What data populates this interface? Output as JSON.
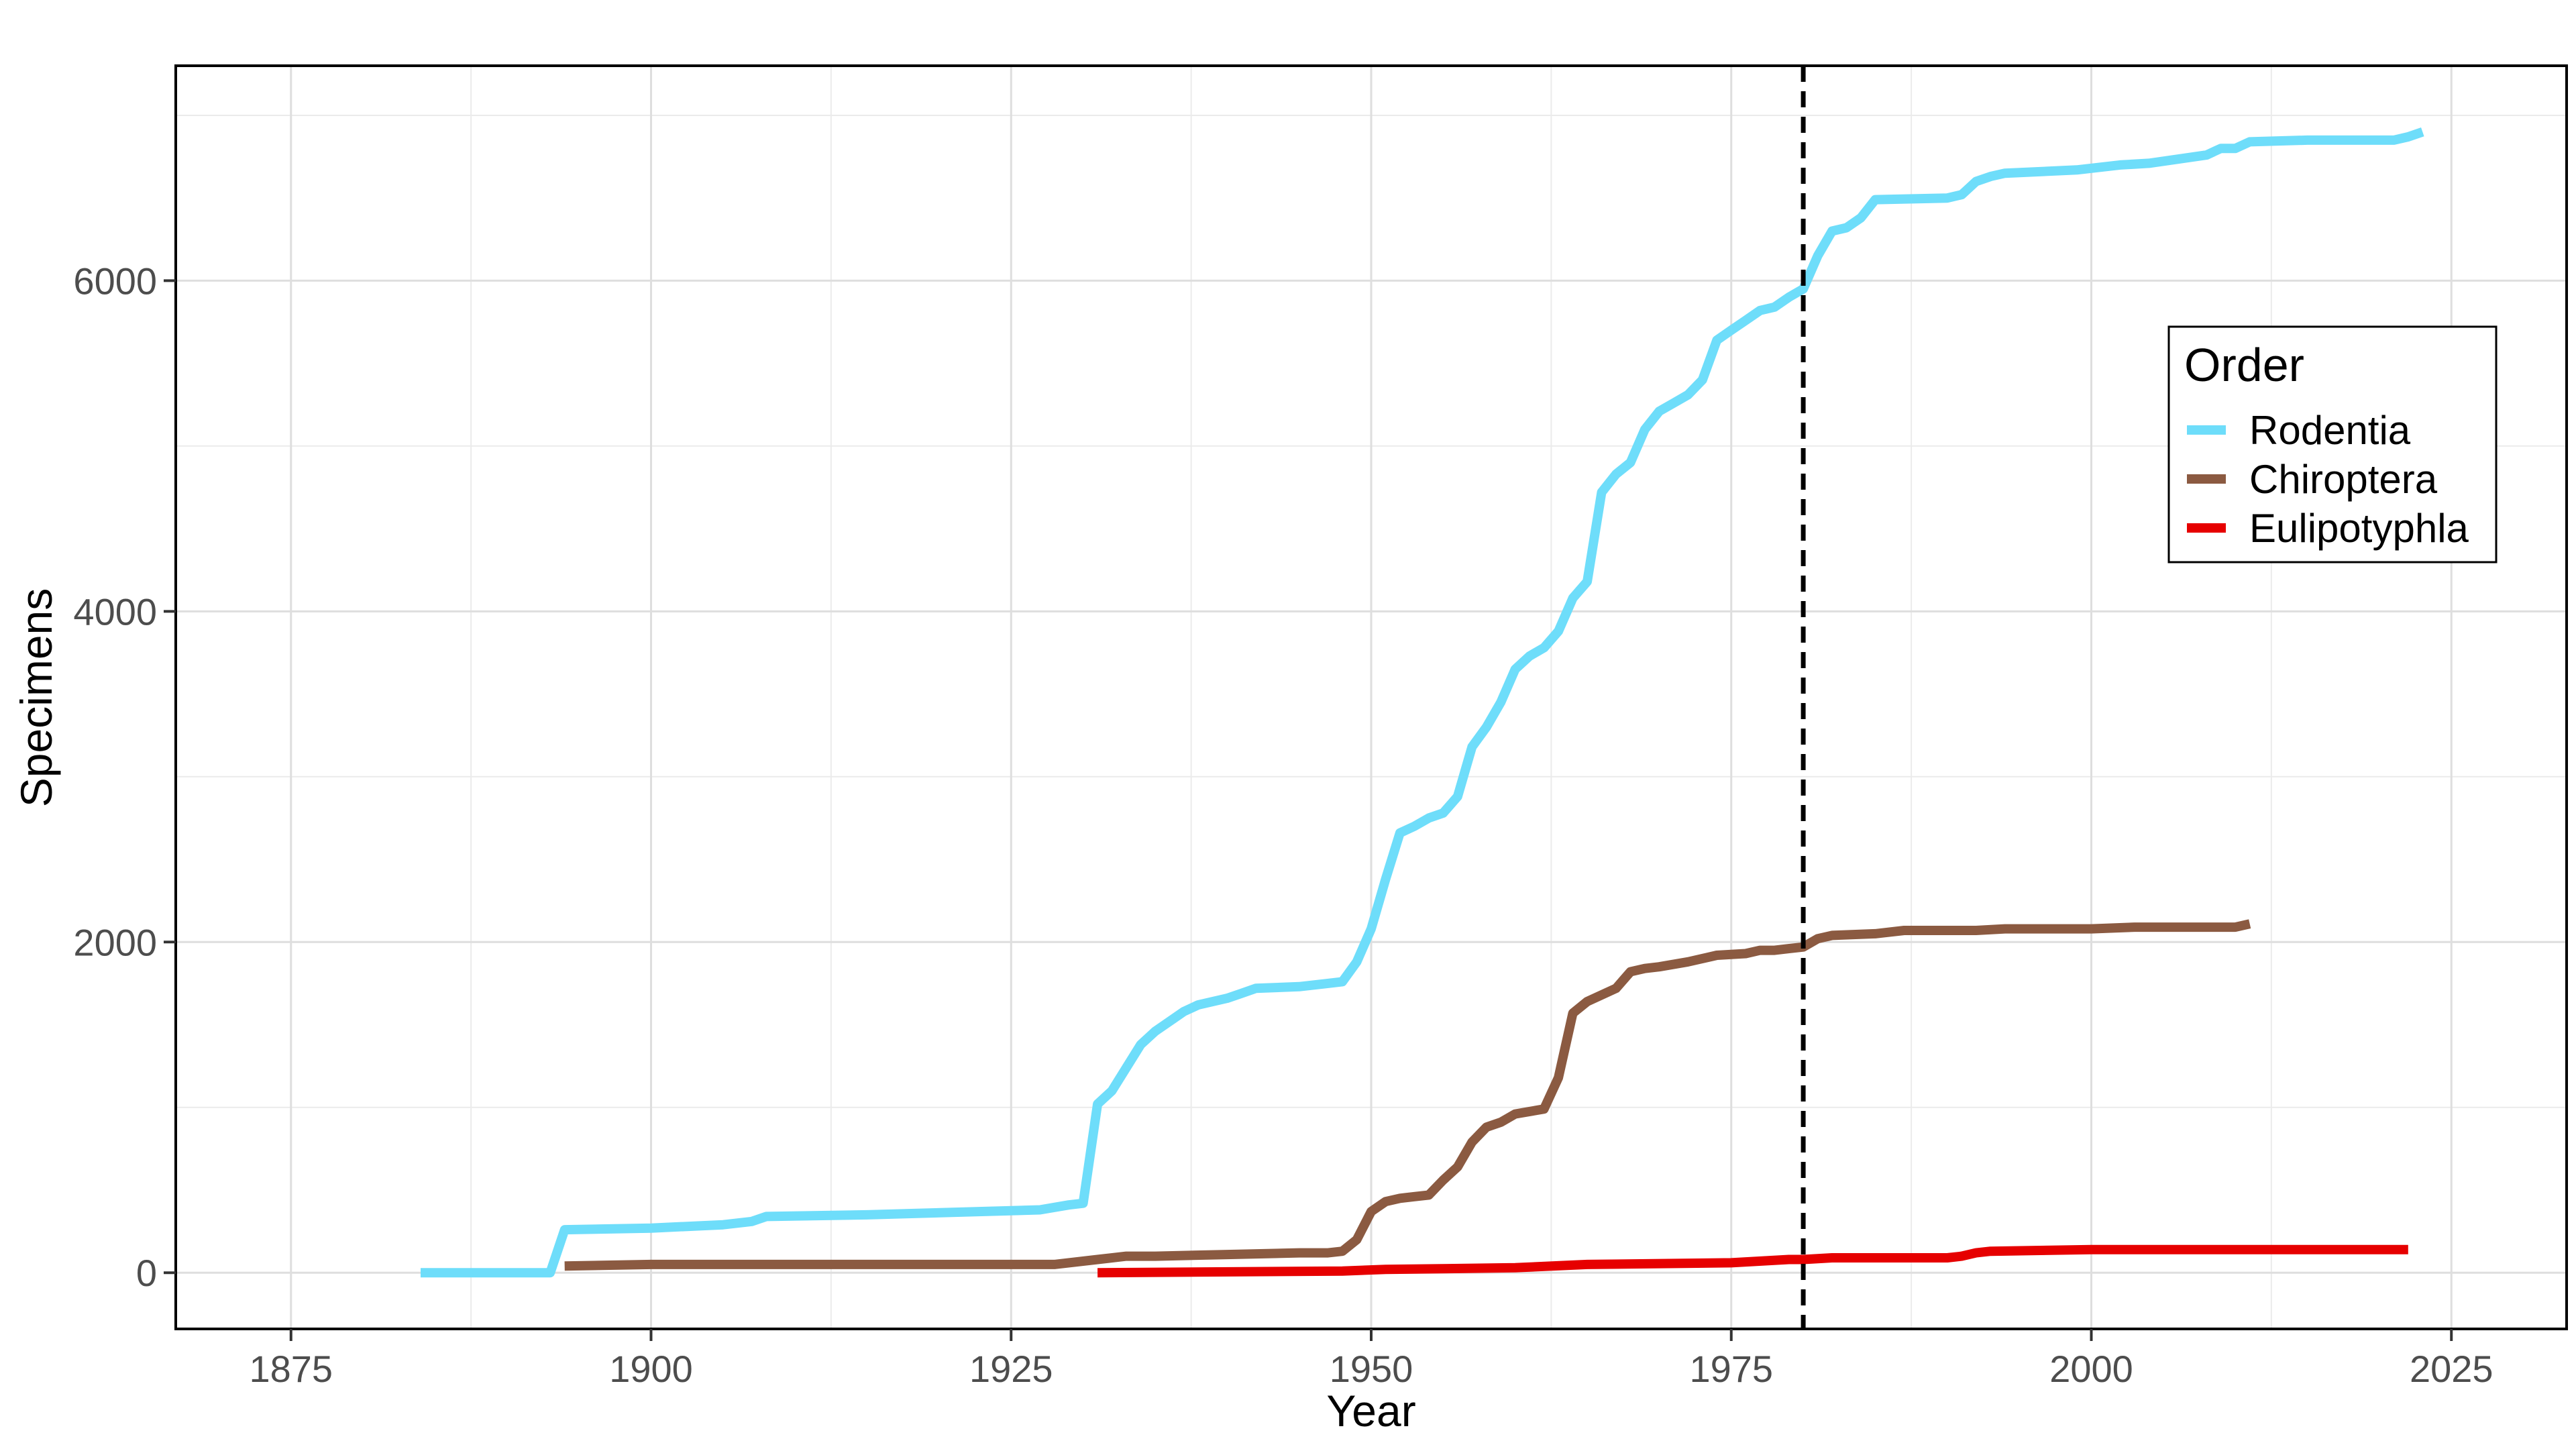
{
  "chart_data": {
    "type": "line",
    "xlabel": "Year",
    "ylabel": "Specimens",
    "xlim": [
      1867,
      2033
    ],
    "ylim": [
      -340,
      7300
    ],
    "x_ticks": [
      1875,
      1900,
      1925,
      1950,
      1975,
      2000,
      2025
    ],
    "x_tick_labels": [
      "1875",
      "1900",
      "1925",
      "1950",
      "1975",
      "2000",
      "2025"
    ],
    "y_ticks": [
      0,
      2000,
      4000,
      6000
    ],
    "y_tick_labels": [
      "0",
      "2000",
      "4000",
      "6000"
    ],
    "grid": true,
    "reference_line": {
      "x": 1980,
      "style": "dashed",
      "color": "#000000"
    },
    "legend": {
      "title": "Order",
      "position": "right"
    },
    "series": [
      {
        "name": "Rodentia",
        "color": "#6EDDFA",
        "x": [
          1884,
          1888,
          1893,
          1894,
          1900,
          1905,
          1907,
          1908,
          1915,
          1927,
          1929,
          1930,
          1931,
          1932,
          1934,
          1935,
          1937,
          1938,
          1940,
          1941,
          1942,
          1945,
          1947,
          1948,
          1949,
          1950,
          1951,
          1952,
          1953,
          1954,
          1955,
          1956,
          1957,
          1958,
          1959,
          1960,
          1961,
          1962,
          1963,
          1964,
          1965,
          1966,
          1967,
          1968,
          1969,
          1970,
          1971,
          1972,
          1973,
          1974,
          1975,
          1976,
          1977,
          1978,
          1979,
          1980,
          1981,
          1982,
          1983,
          1984,
          1985,
          1990,
          1991,
          1992,
          1993,
          1994,
          1999,
          2002,
          2004,
          2008,
          2009,
          2010,
          2011,
          2015,
          2021,
          2022,
          2023
        ],
        "values": [
          0,
          0,
          0,
          260,
          270,
          290,
          310,
          340,
          350,
          380,
          410,
          420,
          1020,
          1100,
          1380,
          1460,
          1580,
          1620,
          1660,
          1690,
          1720,
          1730,
          1750,
          1760,
          1880,
          2080,
          2380,
          2660,
          2700,
          2750,
          2780,
          2880,
          3180,
          3300,
          3450,
          3650,
          3730,
          3780,
          3880,
          4080,
          4180,
          4720,
          4830,
          4900,
          5100,
          5210,
          5260,
          5310,
          5400,
          5640,
          5700,
          5760,
          5820,
          5840,
          5900,
          5950,
          6150,
          6300,
          6320,
          6380,
          6490,
          6500,
          6520,
          6600,
          6630,
          6650,
          6670,
          6700,
          6710,
          6760,
          6800,
          6800,
          6840,
          6850,
          6850,
          6870,
          6900
        ]
      },
      {
        "name": "Chiroptera",
        "color": "#8B5A41",
        "x": [
          1894,
          1900,
          1928,
          1931,
          1933,
          1935,
          1940,
          1945,
          1947,
          1948,
          1949,
          1950,
          1951,
          1952,
          1953,
          1954,
          1955,
          1956,
          1957,
          1958,
          1959,
          1960,
          1962,
          1963,
          1964,
          1965,
          1966,
          1967,
          1968,
          1969,
          1970,
          1972,
          1974,
          1976,
          1977,
          1978,
          1979,
          1980,
          1981,
          1982,
          1985,
          1987,
          1992,
          1994,
          2000,
          2003,
          2005,
          2010,
          2011
        ],
        "values": [
          40,
          50,
          50,
          80,
          100,
          100,
          110,
          120,
          120,
          130,
          200,
          370,
          430,
          450,
          460,
          470,
          560,
          640,
          790,
          880,
          910,
          960,
          990,
          1180,
          1570,
          1640,
          1680,
          1720,
          1820,
          1840,
          1850,
          1880,
          1920,
          1930,
          1950,
          1950,
          1960,
          1970,
          2020,
          2040,
          2050,
          2070,
          2070,
          2080,
          2080,
          2090,
          2090,
          2090,
          2110
        ]
      },
      {
        "name": "Eulipotyphla",
        "color": "#E60000",
        "x": [
          1931,
          1948,
          1951,
          1960,
          1965,
          1975,
          1979,
          1980,
          1982,
          1990,
          1991,
          1992,
          1993,
          2000,
          2005,
          2022
        ],
        "values": [
          0,
          10,
          20,
          30,
          50,
          60,
          80,
          80,
          90,
          90,
          100,
          120,
          130,
          140,
          140,
          140
        ]
      }
    ]
  }
}
